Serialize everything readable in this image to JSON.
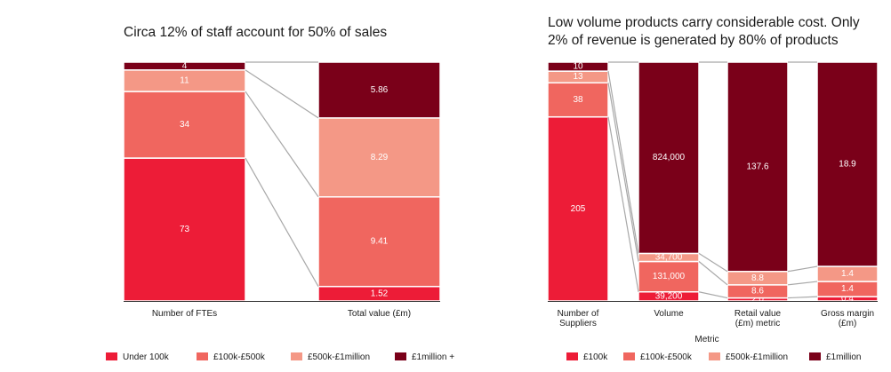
{
  "colors": {
    "c1": "#ed1c37",
    "c2": "#f0665f",
    "c3": "#f49886",
    "c4": "#7a0019",
    "connector": "#a8a8a8",
    "axis": "#333333"
  },
  "chart_data": [
    {
      "type": "bar",
      "stacked": true,
      "title": "Circa 12% of staff account for 50% of sales",
      "xlabel": "",
      "categories": [
        "Number of FTEs",
        "Total value (£m)"
      ],
      "series": [
        {
          "name": "Under 100k",
          "values": [
            73,
            1.52
          ]
        },
        {
          "name": "£100k-£500k",
          "values": [
            34,
            9.41
          ]
        },
        {
          "name": "£500k-£1million",
          "values": [
            11,
            8.29
          ]
        },
        {
          "name": "£1million +",
          "values": [
            4,
            5.86
          ]
        }
      ],
      "legend": [
        "Under 100k",
        "£100k-£500k",
        "£500k-£1million",
        "£1million +"
      ],
      "legend_position": "bottom"
    },
    {
      "type": "bar",
      "stacked": true,
      "normalized": true,
      "title_lines": [
        "Low volume products carry considerable cost. Only",
        "2% of revenue is generated by 80% of products"
      ],
      "xlabel": "Metric",
      "categories": [
        [
          "Number of",
          "Suppliers"
        ],
        [
          "Volume"
        ],
        [
          "Retail value",
          "(£m) metric"
        ],
        [
          "Gross margin",
          "(£m)"
        ]
      ],
      "series": [
        {
          "name": "£100k",
          "values": [
            205,
            39200,
            2.0,
            0.4
          ],
          "labels": [
            "205",
            "39,200",
            "2.0",
            "0.4"
          ]
        },
        {
          "name": "£100k-£500k",
          "values": [
            38,
            131000,
            8.6,
            1.4
          ],
          "labels": [
            "38",
            "131,000",
            "8.6",
            "1.4"
          ]
        },
        {
          "name": "£500k-£1million",
          "values": [
            13,
            34700,
            8.8,
            1.4
          ],
          "labels": [
            "13",
            "34,700",
            "8.8",
            "1.4"
          ]
        },
        {
          "name": "£1million",
          "values": [
            10,
            824000,
            137.6,
            18.9
          ],
          "labels": [
            "10",
            "824,000",
            "137.6",
            "18.9"
          ]
        }
      ],
      "legend": [
        "£100k",
        "£100k-£500k",
        "£500k-£1million",
        "£1million"
      ],
      "legend_position": "bottom"
    }
  ]
}
